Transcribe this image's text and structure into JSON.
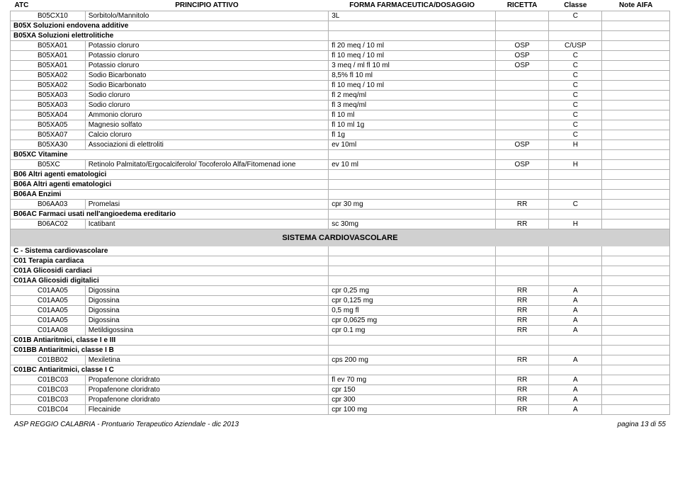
{
  "headers": {
    "atc": "ATC",
    "principio": "PRINCIPIO ATTIVO",
    "forma": "FORMA FARMACEUTICA/DOSAGGIO",
    "ricetta": "RICETTA",
    "classe": "Classe",
    "note": "Note AIFA"
  },
  "rows": [
    {
      "t": "data",
      "atc": "B05CX10",
      "pa": "Sorbitolo/Mannitolo",
      "forma": "3L",
      "ric": "",
      "cls": "C",
      "note": ""
    },
    {
      "t": "grp",
      "lbl": "B05X  Soluzioni endovena additive"
    },
    {
      "t": "grp",
      "lbl": "B05XA  Soluzioni elettrolitiche"
    },
    {
      "t": "data",
      "atc": "B05XA01",
      "pa": "Potassio cloruro",
      "forma": "fl 20 meq / 10 ml",
      "ric": "OSP",
      "cls": "C/USP",
      "note": ""
    },
    {
      "t": "data",
      "atc": "B05XA01",
      "pa": "Potassio cloruro",
      "forma": "fl 10 meq / 10 ml",
      "ric": "OSP",
      "cls": "C",
      "note": ""
    },
    {
      "t": "data",
      "atc": "B05XA01",
      "pa": "Potassio cloruro",
      "forma": "3 meq / ml fl 10 ml",
      "ric": "OSP",
      "cls": "C",
      "note": ""
    },
    {
      "t": "data",
      "atc": "B05XA02",
      "pa": "Sodio Bicarbonato",
      "forma": "8,5% fl 10 ml",
      "ric": "",
      "cls": "C",
      "note": ""
    },
    {
      "t": "data",
      "atc": "B05XA02",
      "pa": "Sodio Bicarbonato",
      "forma": "fl 10 meq / 10 ml",
      "ric": "",
      "cls": "C",
      "note": ""
    },
    {
      "t": "data",
      "atc": "B05XA03",
      "pa": "Sodio cloruro",
      "forma": "fl 2 meq/ml",
      "ric": "",
      "cls": "C",
      "note": ""
    },
    {
      "t": "data",
      "atc": "B05XA03",
      "pa": "Sodio cloruro",
      "forma": "fl 3 meq/ml",
      "ric": "",
      "cls": "C",
      "note": ""
    },
    {
      "t": "data",
      "atc": "B05XA04",
      "pa": "Ammonio cloruro",
      "forma": "fl 10 ml",
      "ric": "",
      "cls": "C",
      "note": ""
    },
    {
      "t": "data",
      "atc": "B05XA05",
      "pa": "Magnesio solfato",
      "forma": "fl 10 ml 1g",
      "ric": "",
      "cls": "C",
      "note": ""
    },
    {
      "t": "data",
      "atc": "B05XA07",
      "pa": "Calcio cloruro",
      "forma": "fl 1g",
      "ric": "",
      "cls": "C",
      "note": ""
    },
    {
      "t": "data",
      "atc": "B05XA30",
      "pa": "Associazioni di elettroliti",
      "forma": "ev 10ml",
      "ric": "OSP",
      "cls": "H",
      "note": ""
    },
    {
      "t": "grp",
      "lbl": "B05XC  Vitamine"
    },
    {
      "t": "data",
      "atc": "B05XC",
      "pa": "Retinolo Palmitato/Ergocalciferolo/ Tocoferolo Alfa/Fitomenad ione",
      "forma": "ev 10 ml",
      "ric": "OSP",
      "cls": "H",
      "note": ""
    },
    {
      "t": "grp",
      "lbl": "B06  Altri agenti ematologici"
    },
    {
      "t": "grp",
      "lbl": "B06A Altri agenti ematologici"
    },
    {
      "t": "grp",
      "lbl": "B06AA  Enzimi"
    },
    {
      "t": "data",
      "atc": "B06AA03",
      "pa": "Promelasi",
      "forma": "cpr 30 mg",
      "ric": "RR",
      "cls": "C",
      "note": ""
    },
    {
      "t": "grp",
      "lbl": "B06AC Farmaci usati nell'angioedema ereditario"
    },
    {
      "t": "data",
      "atc": "B06AC02",
      "pa": "Icatibant",
      "forma": "sc 30mg",
      "ric": "RR",
      "cls": "H",
      "note": ""
    },
    {
      "t": "band",
      "lbl": "SISTEMA CARDIOVASCOLARE"
    },
    {
      "t": "grp",
      "lbl": "C - Sistema cardiovascolare"
    },
    {
      "t": "grp",
      "lbl": "C01  Terapia cardiaca"
    },
    {
      "t": "grp",
      "lbl": "C01A  Glicosidi cardiaci"
    },
    {
      "t": "grp",
      "lbl": "C01AA  Glicosidi digitalici"
    },
    {
      "t": "data",
      "atc": "C01AA05",
      "pa": "Digossina",
      "forma": "cpr 0,25 mg",
      "ric": "RR",
      "cls": "A",
      "note": ""
    },
    {
      "t": "data",
      "atc": "C01AA05",
      "pa": "Digossina",
      "forma": "cpr 0,125 mg",
      "ric": "RR",
      "cls": "A",
      "note": ""
    },
    {
      "t": "data",
      "atc": "C01AA05",
      "pa": "Digossina",
      "forma": "0,5 mg fl",
      "ric": "RR",
      "cls": "A",
      "note": ""
    },
    {
      "t": "data",
      "atc": "C01AA05",
      "pa": "Digossina",
      "forma": "cpr 0,0625 mg",
      "ric": "RR",
      "cls": "A",
      "note": ""
    },
    {
      "t": "data",
      "atc": "C01AA08",
      "pa": "Metildigossina",
      "forma": "cpr 0.1 mg",
      "ric": "RR",
      "cls": "A",
      "note": ""
    },
    {
      "t": "grp",
      "lbl": "C01B  Antiaritmici, classe I e III"
    },
    {
      "t": "grp",
      "lbl": "C01BB  Antiaritmici, classe I B"
    },
    {
      "t": "data",
      "atc": "C01BB02",
      "pa": "Mexiletina",
      "forma": "cps 200 mg",
      "ric": "RR",
      "cls": "A",
      "note": ""
    },
    {
      "t": "grp",
      "lbl": "C01BC  Antiaritmici, classe I C"
    },
    {
      "t": "data",
      "atc": "C01BC03",
      "pa": "Propafenone cloridrato",
      "forma": "fl ev 70 mg",
      "ric": "RR",
      "cls": "A",
      "note": ""
    },
    {
      "t": "data",
      "atc": "C01BC03",
      "pa": "Propafenone cloridrato",
      "forma": "cpr 150",
      "ric": "RR",
      "cls": "A",
      "note": ""
    },
    {
      "t": "data",
      "atc": "C01BC03",
      "pa": "Propafenone cloridrato",
      "forma": "cpr 300",
      "ric": "RR",
      "cls": "A",
      "note": ""
    },
    {
      "t": "data",
      "atc": "C01BC04",
      "pa": "Flecainide",
      "forma": "cpr 100 mg",
      "ric": "RR",
      "cls": "A",
      "note": ""
    }
  ],
  "footer": {
    "left": "ASP REGGIO CALABRIA - Prontuario Terapeutico Aziendale - dic 2013",
    "right": "pagina 13 di 55"
  }
}
